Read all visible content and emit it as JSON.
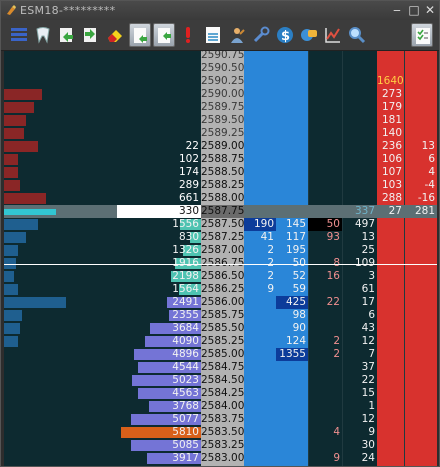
{
  "window": {
    "title": "ESM18-*********",
    "min": "‒",
    "max": "□",
    "close": "✕"
  },
  "toolbar": {
    "buttons": [
      "layout-icon",
      "tooth-icon",
      "green-arrow-left-icon",
      "green-arrow-right-icon",
      "eraser-icon",
      "page-arrow-icon",
      "page-arrow-icon",
      "exclamation-icon",
      "document-icon",
      "user-icon",
      "wrench-icon",
      "dollar-icon",
      "globe-chat-icon",
      "chart-icon",
      "magnifier-icon",
      "checklist-icon"
    ]
  },
  "colors": {
    "bg": "#0d2a30",
    "price_col": "#b2b2b2",
    "blue_col": "#2a86d8",
    "red_col": "#d8322e",
    "cum_bid": "#7474d6",
    "cum_ask": "#4ec3b1",
    "hist": "#8a2626"
  },
  "ladder": [
    {
      "price": "2590.75",
      "hist": 0
    },
    {
      "price": "2590.50",
      "hist": 0
    },
    {
      "price": "2590.25",
      "hist": 0,
      "ask": "1640",
      "ask_hl": true
    },
    {
      "price": "2590.00",
      "hist": 38,
      "ask": "273"
    },
    {
      "price": "2589.75",
      "hist": 30,
      "ask": "179"
    },
    {
      "price": "2589.50",
      "hist": 22,
      "ask": "181"
    },
    {
      "price": "2589.25",
      "hist": 20,
      "ask": "140"
    },
    {
      "price": "2589.00",
      "hist": 34,
      "cum": "22",
      "ask": "236",
      "ra": "13"
    },
    {
      "price": "2588.75",
      "hist": 14,
      "cum": "102",
      "ask": "106",
      "ra": "6"
    },
    {
      "price": "2588.50",
      "hist": 14,
      "cum": "174",
      "ask": "107",
      "ra": "4"
    },
    {
      "price": "2588.25",
      "hist": 16,
      "cum": "289",
      "ask": "103",
      "ra": "-4"
    },
    {
      "price": "2588.00",
      "hist": 42,
      "cum": "661",
      "ask": "288",
      "ra": "-16"
    },
    {
      "price": "2587.75",
      "hist": 52,
      "cur": "330",
      "last": "337",
      "ask": "27",
      "ra": "281",
      "current": true
    },
    {
      "price": "2587.50",
      "hist": 34,
      "cum": "1556",
      "bidv": "190",
      "askv": "145",
      "bk": "50",
      "bvol": "497",
      "bidv_hl": true,
      "bk_hl": true
    },
    {
      "price": "2587.25",
      "hist": 22,
      "cum": "830",
      "bidv": "41",
      "askv": "117",
      "bk": "93",
      "bvol": "13"
    },
    {
      "price": "2587.00",
      "hist": 14,
      "cum": "1326",
      "bidv": "2",
      "askv": "195",
      "bvol": "25"
    },
    {
      "price": "2586.75",
      "hist": 12,
      "cum": "1916",
      "bidv": "2",
      "askv": "50",
      "bk": "8",
      "bvol": "109"
    },
    {
      "price": "2586.50",
      "hist": 10,
      "cum": "2198",
      "bidv": "2",
      "askv": "52",
      "bk": "16",
      "bvol": "3"
    },
    {
      "price": "2586.25",
      "hist": 14,
      "cum": "1564",
      "bidv": "9",
      "askv": "59",
      "bvol": "61"
    },
    {
      "price": "2586.00",
      "hist": 62,
      "cum": "2491",
      "askv": "425",
      "bk": "22",
      "bvol": "17",
      "askv_hl": true
    },
    {
      "price": "2585.75",
      "hist": 18,
      "cum": "2355",
      "askv": "98",
      "bvol": "6"
    },
    {
      "price": "2585.50",
      "hist": 16,
      "cum": "3684",
      "askv": "90",
      "bvol": "43"
    },
    {
      "price": "2585.25",
      "hist": 14,
      "cum": "4090",
      "askv": "124",
      "bk": "2",
      "bvol": "12"
    },
    {
      "price": "2585.00",
      "hist": 0,
      "cum": "4896",
      "askv": "1355",
      "bk": "2",
      "bvol": "7",
      "askv_hl": true
    },
    {
      "price": "2584.75",
      "hist": 0,
      "cum": "4544",
      "bvol": "37"
    },
    {
      "price": "2584.50",
      "hist": 0,
      "cum": "5023",
      "bvol": "22"
    },
    {
      "price": "2584.25",
      "hist": 0,
      "cum": "4563",
      "bvol": "15"
    },
    {
      "price": "2584.00",
      "hist": 0,
      "cum": "3768",
      "bvol": "1"
    },
    {
      "price": "2583.75",
      "hist": 0,
      "cum": "5077",
      "bvol": "12"
    },
    {
      "price": "2583.50",
      "hist": 0,
      "cum": "5810",
      "bk": "4",
      "bvol": "9",
      "cum_hl": true
    },
    {
      "price": "2583.25",
      "hist": 0,
      "cum": "5085",
      "bvol": "30"
    },
    {
      "price": "2583.00",
      "hist": 0,
      "cum": "3917",
      "bk": "9",
      "bvol": "24"
    }
  ]
}
